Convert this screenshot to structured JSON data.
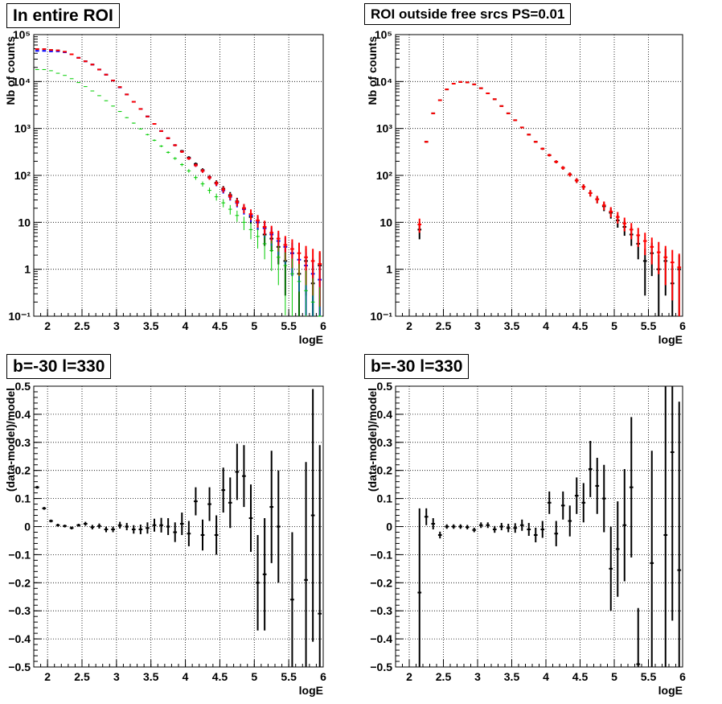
{
  "chart_data": [
    {
      "type": "scatter",
      "title": "In entire ROI",
      "xlabel": "logE",
      "ylabel": "Nb of counts",
      "xlim": [
        1.8,
        6.0
      ],
      "ylim": [
        0.1,
        100000
      ],
      "yscale": "log",
      "grid": true,
      "xticks": [
        "2",
        "2.5",
        "3",
        "3.5",
        "4",
        "4.5",
        "5",
        "5.5",
        "6"
      ],
      "yticks": [
        "10⁻¹",
        "1",
        "10",
        "10²",
        "10³",
        "10⁴",
        "10⁵"
      ],
      "x": [
        1.85,
        1.95,
        2.05,
        2.15,
        2.25,
        2.35,
        2.45,
        2.55,
        2.65,
        2.75,
        2.85,
        2.95,
        3.05,
        3.15,
        3.25,
        3.35,
        3.45,
        3.55,
        3.65,
        3.75,
        3.85,
        3.95,
        4.05,
        4.15,
        4.25,
        4.35,
        4.45,
        4.55,
        4.65,
        4.75,
        4.85,
        4.95,
        5.05,
        5.15,
        5.25,
        5.35,
        5.45,
        5.55,
        5.65,
        5.75,
        5.85,
        5.95
      ],
      "series": [
        {
          "color": "#000000",
          "values": [
            49000,
            49000,
            47000,
            46000,
            43000,
            38000,
            32000,
            27000,
            23000,
            18000,
            14000,
            10500,
            7600,
            5300,
            3700,
            2600,
            1800,
            1250,
            880,
            620,
            440,
            330,
            240,
            175,
            130,
            92,
            70,
            52,
            38,
            28,
            20,
            13,
            10,
            5.5,
            4.5,
            3,
            1.5,
            2.2,
            0.8,
            1.5,
            0.5,
            1.2
          ]
        },
        {
          "color": "#0000ff",
          "values": [
            45000,
            45000,
            44000,
            44000,
            42000,
            38000,
            32000,
            27000,
            23000,
            18000,
            14000,
            10500,
            7500,
            5300,
            3700,
            2600,
            1800,
            1250,
            880,
            620,
            440,
            320,
            230,
            165,
            125,
            90,
            67,
            48,
            35,
            26,
            19,
            14,
            10,
            7.5,
            5.5,
            4,
            3,
            2.2,
            1.6,
            1.2,
            0.8,
            0.6
          ]
        },
        {
          "color": "#ff0000",
          "values": [
            49000,
            49000,
            47000,
            46000,
            43000,
            38000,
            32000,
            27000,
            23000,
            18000,
            14000,
            10500,
            7600,
            5300,
            3700,
            2600,
            1800,
            1250,
            880,
            620,
            440,
            320,
            230,
            165,
            125,
            90,
            68,
            50,
            36,
            27,
            20,
            15,
            11,
            8,
            6,
            4.5,
            3.3,
            2.7,
            2.2,
            1.8,
            1.5,
            1.3
          ]
        },
        {
          "color": "#00cc00",
          "values": [
            18000,
            18000,
            17000,
            15000,
            13500,
            11500,
            9500,
            7800,
            6300,
            5000,
            3900,
            3000,
            2300,
            1700,
            1300,
            980,
            740,
            560,
            420,
            310,
            230,
            170,
            125,
            90,
            66,
            48,
            35,
            26,
            19,
            14,
            10,
            7,
            5,
            3.5,
            2.5,
            1.8,
            1.2,
            0.8,
            0.55,
            0.35,
            0.2,
            0.1
          ]
        }
      ]
    },
    {
      "type": "scatter",
      "title": "ROI outside free srcs PS=0.01",
      "xlabel": "logE",
      "ylabel": "Nb of counts",
      "xlim": [
        1.8,
        6.0
      ],
      "ylim": [
        0.1,
        100000
      ],
      "yscale": "log",
      "grid": true,
      "xticks": [
        "2",
        "2.5",
        "3",
        "3.5",
        "4",
        "4.5",
        "5",
        "5.5",
        "6"
      ],
      "yticks": [
        "10⁻¹",
        "1",
        "10",
        "10²",
        "10³",
        "10⁴",
        "10⁵"
      ],
      "x": [
        2.15,
        2.25,
        2.35,
        2.45,
        2.55,
        2.65,
        2.75,
        2.85,
        2.95,
        3.05,
        3.15,
        3.25,
        3.35,
        3.45,
        3.55,
        3.65,
        3.75,
        3.85,
        3.95,
        4.05,
        4.15,
        4.25,
        4.35,
        4.45,
        4.55,
        4.65,
        4.75,
        4.85,
        4.95,
        5.05,
        5.15,
        5.25,
        5.35,
        5.45,
        5.55,
        5.65,
        5.75,
        5.85,
        5.95
      ],
      "series": [
        {
          "color": "#000000",
          "values": [
            7,
            520,
            2100,
            4000,
            6800,
            9000,
            9800,
            9600,
            8700,
            7200,
            5600,
            4200,
            3000,
            2100,
            1500,
            1050,
            740,
            520,
            370,
            270,
            195,
            145,
            105,
            78,
            57,
            42,
            31,
            22,
            16,
            11,
            8,
            5.5,
            3.5,
            1.5,
            2.2,
            1,
            1.5,
            0.5,
            1
          ]
        },
        {
          "color": "#ff0000",
          "values": [
            9,
            520,
            2100,
            4000,
            6800,
            9000,
            9800,
            9600,
            8700,
            7200,
            5600,
            4200,
            3000,
            2100,
            1500,
            1050,
            740,
            520,
            370,
            270,
            195,
            145,
            105,
            78,
            57,
            42,
            31,
            23,
            17,
            13,
            9.5,
            7,
            5.3,
            4,
            3,
            2.3,
            1.8,
            1.4,
            1.1
          ]
        }
      ]
    },
    {
      "type": "scatter",
      "title": "b=-30 l=330",
      "xlabel": "logE",
      "ylabel": "(data-model)/model",
      "xlim": [
        1.8,
        6.0
      ],
      "ylim": [
        -0.5,
        0.5
      ],
      "grid": true,
      "xticks": [
        "2",
        "2.5",
        "3",
        "3.5",
        "4",
        "4.5",
        "5",
        "5.5",
        "6"
      ],
      "yticks": [
        "−0.5",
        "−0.4",
        "−0.3",
        "−0.2",
        "−0.1",
        "0",
        "0.1",
        "0.2",
        "0.3",
        "0.4",
        "0.5"
      ],
      "x": [
        1.85,
        1.95,
        2.05,
        2.15,
        2.25,
        2.35,
        2.45,
        2.55,
        2.65,
        2.75,
        2.85,
        2.95,
        3.05,
        3.15,
        3.25,
        3.35,
        3.45,
        3.55,
        3.65,
        3.75,
        3.85,
        3.95,
        4.05,
        4.15,
        4.25,
        4.35,
        4.45,
        4.55,
        4.65,
        4.75,
        4.85,
        4.95,
        5.05,
        5.15,
        5.25,
        5.35,
        5.45,
        5.55,
        5.65,
        5.75,
        5.85,
        5.95
      ],
      "series": [
        {
          "color": "#000000",
          "values": [
            0.14,
            0.065,
            0.02,
            0.005,
            0.002,
            -0.005,
            0.005,
            0.01,
            -0.002,
            0.002,
            -0.01,
            -0.01,
            0.005,
            0.0,
            -0.01,
            -0.01,
            -0.005,
            0.005,
            0.005,
            0.0,
            -0.02,
            0.01,
            -0.025,
            0.09,
            -0.03,
            0.08,
            -0.03,
            0.13,
            0.085,
            0.195,
            0.18,
            0.03,
            -0.2,
            -0.17,
            0.07,
            0.0,
            null,
            -0.26,
            null,
            -0.19,
            0.04,
            -0.31
          ],
          "errors": [
            0.005,
            0.005,
            0.005,
            0.005,
            0.005,
            0.005,
            0.005,
            0.007,
            0.008,
            0.009,
            0.01,
            0.01,
            0.012,
            0.013,
            0.015,
            0.017,
            0.02,
            0.023,
            0.026,
            0.03,
            0.035,
            0.04,
            0.045,
            0.05,
            0.055,
            0.06,
            0.07,
            0.08,
            0.09,
            0.1,
            0.11,
            0.12,
            0.17,
            0.2,
            0.2,
            0.2,
            null,
            0.24,
            null,
            0.42,
            0.45,
            0.6
          ]
        }
      ]
    },
    {
      "type": "scatter",
      "title": "b=-30 l=330",
      "xlabel": "logE",
      "ylabel": "(data-model)/model",
      "xlim": [
        1.8,
        6.0
      ],
      "ylim": [
        -0.5,
        0.5
      ],
      "grid": true,
      "xticks": [
        "2",
        "2.5",
        "3",
        "3.5",
        "4",
        "4.5",
        "5",
        "5.5",
        "6"
      ],
      "yticks": [
        "−0.5",
        "−0.4",
        "−0.3",
        "−0.2",
        "−0.1",
        "0",
        "0.1",
        "0.2",
        "0.3",
        "0.4",
        "0.5"
      ],
      "x": [
        2.15,
        2.25,
        2.35,
        2.45,
        2.55,
        2.65,
        2.75,
        2.85,
        2.95,
        3.05,
        3.15,
        3.25,
        3.35,
        3.45,
        3.55,
        3.65,
        3.75,
        3.85,
        3.95,
        4.05,
        4.15,
        4.25,
        4.35,
        4.45,
        4.55,
        4.65,
        4.75,
        4.85,
        4.95,
        5.05,
        5.15,
        5.25,
        5.35,
        5.45,
        5.55,
        5.65,
        5.75,
        5.85,
        5.95
      ],
      "series": [
        {
          "color": "#000000",
          "values": [
            -0.235,
            0.035,
            0.01,
            -0.03,
            0.0,
            0.0,
            0.0,
            -0.002,
            -0.012,
            0.005,
            0.005,
            -0.01,
            0.0,
            -0.005,
            -0.005,
            0.005,
            -0.01,
            -0.03,
            -0.01,
            0.085,
            -0.025,
            0.075,
            0.02,
            0.11,
            0.085,
            0.205,
            0.145,
            0.1,
            -0.15,
            -0.08,
            0.005,
            0.14,
            -0.49,
            null,
            -0.13,
            null,
            -0.03,
            0.265,
            -0.155
          ],
          "errors": [
            0.3,
            0.03,
            0.02,
            0.012,
            0.008,
            0.008,
            0.008,
            0.008,
            0.008,
            0.01,
            0.01,
            0.012,
            0.013,
            0.015,
            0.017,
            0.02,
            0.023,
            0.026,
            0.03,
            0.04,
            0.045,
            0.05,
            0.055,
            0.065,
            0.07,
            0.1,
            0.1,
            0.12,
            0.15,
            0.17,
            0.2,
            0.25,
            0.2,
            null,
            0.4,
            null,
            0.6,
            0.6,
            0.6
          ]
        }
      ]
    }
  ]
}
